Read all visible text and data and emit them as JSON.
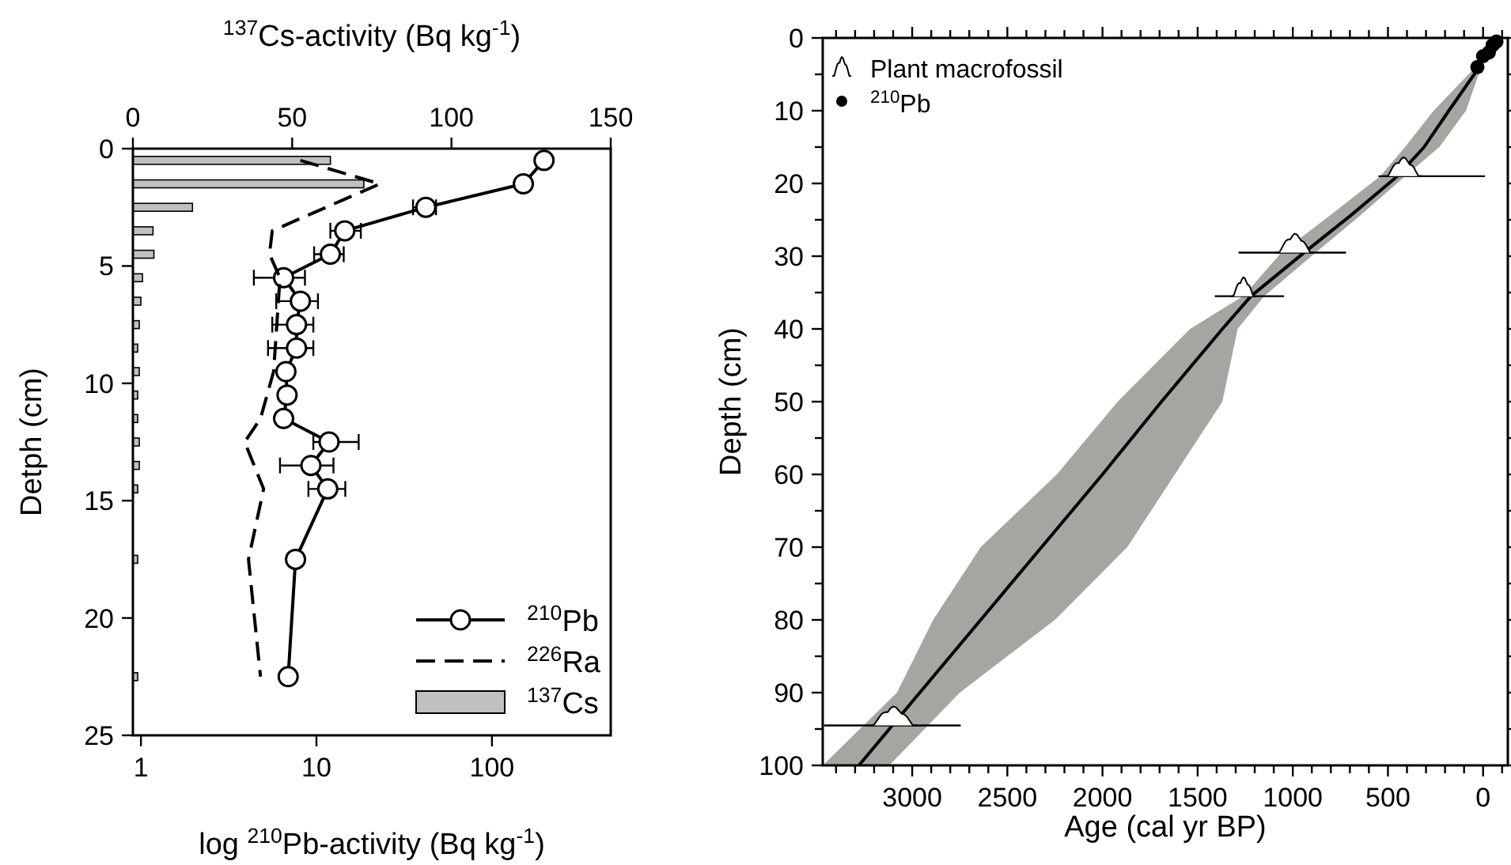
{
  "chart_data": [
    {
      "type": "line",
      "orientation": "horizontal",
      "xlabel": "log $^{210}$Pb-activity (Bq kg$^{-1}$)",
      "x2label": "$^{137}$Cs-activity (Bq kg$^{-1}$)",
      "ylabel": "Detph (cm)",
      "log": "x",
      "xlim": [
        0.9,
        475
      ],
      "xticks": [
        1,
        10,
        100
      ],
      "x2lim": [
        0,
        150
      ],
      "x2ticks": [
        0,
        50,
        100,
        150
      ],
      "ylim": [
        25,
        0
      ],
      "yticks": [
        0,
        5,
        10,
        15,
        20,
        25
      ],
      "grid": false,
      "legend": "bottom right",
      "series": [
        {
          "name": "$^{210}$Pb",
          "marker": "circle",
          "line_style": "solid",
          "color": "#000000",
          "x": [
            0.5,
            1.5,
            2.5,
            3.5,
            4.5,
            5.5,
            6.5,
            7.5,
            8.5,
            9.5,
            10.5,
            11.5,
            12.5,
            13.5,
            14.5,
            17.5,
            22.5
          ],
          "values": [
            198,
            151,
            42,
            14.5,
            12,
            6.5,
            8.1,
            7.7,
            7.7,
            6.7,
            6.8,
            6.5,
            11.8,
            9.3,
            11.6,
            7.6,
            6.9
          ],
          "errors": [
            null,
            null,
            [
              35.5,
              48
            ],
            [
              12,
              17.9
            ],
            [
              9.7,
              14.3
            ],
            [
              4.4,
              8.6
            ],
            [
              5.9,
              10.2
            ],
            [
              5.6,
              9.6
            ],
            [
              5.3,
              9.6
            ],
            null,
            null,
            null,
            [
              9.6,
              17.4
            ],
            [
              6.2,
              12.5
            ],
            [
              9,
              14.6
            ],
            null,
            null
          ]
        },
        {
          "name": "$^{226}$Ra",
          "marker": "none",
          "line_style": "dashed",
          "color": "#000000",
          "x": [
            0.5,
            1.5,
            3.5,
            4.5,
            5.5,
            9.5,
            11.5,
            12.5,
            14.5,
            17.5,
            22.5
          ],
          "values": [
            8.1,
            23,
            5.6,
            5.4,
            6.2,
            5.7,
            4.8,
            3.9,
            5,
            4.1,
            4.8
          ]
        },
        {
          "name": "$^{137}$Cs",
          "type": "bar",
          "axis": "x2",
          "color": "#c0c0c0",
          "x": [
            0.5,
            1.5,
            2.5,
            3.5,
            4.5,
            5.5,
            6.5,
            7.5,
            8.5,
            9.5,
            10.5,
            11.5,
            12.5,
            13.5,
            14.5,
            17.5,
            22.5
          ],
          "values": [
            62,
            72.5,
            18.7,
            6.3,
            6.6,
            3,
            2.5,
            2,
            1.5,
            2,
            1.5,
            1.5,
            2,
            2,
            1.5,
            1.5,
            1.5
          ]
        }
      ]
    },
    {
      "type": "line",
      "orientation": "horizontal",
      "xlabel": "Age (cal yr BP)",
      "ylabel": "Depth (cm)",
      "xlim": [
        3470,
        -130
      ],
      "xticks": [
        {
          "value": 3400,
          "label": null
        },
        {
          "value": 3300,
          "label": null
        },
        {
          "value": 3200,
          "label": null
        },
        {
          "value": 3100,
          "label": null
        },
        3000,
        {
          "value": 2900,
          "label": null
        },
        {
          "value": 2800,
          "label": null
        },
        {
          "value": 2700,
          "label": null
        },
        {
          "value": 2600,
          "label": null
        },
        2500,
        {
          "value": 2400,
          "label": null
        },
        {
          "value": 2300,
          "label": null
        },
        {
          "value": 2200,
          "label": null
        },
        {
          "value": 2100,
          "label": null
        },
        2000,
        {
          "value": 1900,
          "label": null
        },
        {
          "value": 1800,
          "label": null
        },
        {
          "value": 1700,
          "label": null
        },
        {
          "value": 1600,
          "label": null
        },
        1500,
        {
          "value": 1400,
          "label": null
        },
        {
          "value": 1300,
          "label": null
        },
        {
          "value": 1200,
          "label": null
        },
        {
          "value": 1100,
          "label": null
        },
        1000,
        {
          "value": 900,
          "label": null
        },
        {
          "value": 800,
          "label": null
        },
        {
          "value": 700,
          "label": null
        },
        {
          "value": 600,
          "label": null
        },
        500,
        {
          "value": 400,
          "label": null
        },
        {
          "value": 300,
          "label": null
        },
        {
          "value": 200,
          "label": null
        },
        {
          "value": 100,
          "label": null
        },
        0,
        {
          "value": -100,
          "label": null
        }
      ],
      "ylim": [
        100,
        0
      ],
      "yticks": [
        0,
        {
          "value": 5,
          "label": null
        },
        10,
        {
          "value": 15,
          "label": null
        },
        20,
        {
          "value": 25,
          "label": null
        },
        30,
        {
          "value": 35,
          "label": null
        },
        40,
        {
          "value": 45,
          "label": null
        },
        50,
        {
          "value": 55,
          "label": null
        },
        60,
        {
          "value": 65,
          "label": null
        },
        70,
        {
          "value": 75,
          "label": null
        },
        80,
        {
          "value": 85,
          "label": null
        },
        90,
        {
          "value": 95,
          "label": null
        },
        100
      ],
      "grid": false,
      "legend": "top left",
      "series": [
        {
          "line_style": "solid",
          "color": "#000000",
          "x": [
            4,
            10,
            15,
            19,
            24.5,
            29.5,
            35.5,
            40,
            50,
            60,
            70,
            80,
            90,
            100
          ],
          "values": [
            20,
            180,
            310,
            450,
            700,
            940,
            1220,
            1370,
            1690,
            2000,
            2320,
            2640,
            2960,
            3280
          ],
          "lower": [
            10,
            90,
            230,
            410,
            650,
            880,
            1150,
            1290,
            1370,
            1620,
            1870,
            2250,
            2750,
            3120
          ],
          "upper": [
            40,
            260,
            410,
            540,
            810,
            1060,
            1260,
            1540,
            1920,
            2240,
            2640,
            2890,
            3080,
            3470
          ]
        },
        {
          "name": "Plant macrofossil",
          "type": "scatter",
          "color": "#000000",
          "x": [
            17.7,
            28.2,
            34.2,
            93.2
          ],
          "values": [
            420,
            990,
            1260,
            3100
          ],
          "errors": [
            [
              -10,
              550
            ],
            [
              720,
              1285
            ],
            [
              1046,
              1410
            ],
            [
              2745,
              3463
            ]
          ]
        },
        {
          "name": "$^{210}$Pb",
          "type": "scatter",
          "marker": "circle",
          "color": "#000000",
          "x": [
            0.5,
            1,
            2,
            2.5,
            4
          ],
          "values": [
            -70,
            -50,
            -30,
            0,
            30
          ]
        }
      ]
    }
  ]
}
